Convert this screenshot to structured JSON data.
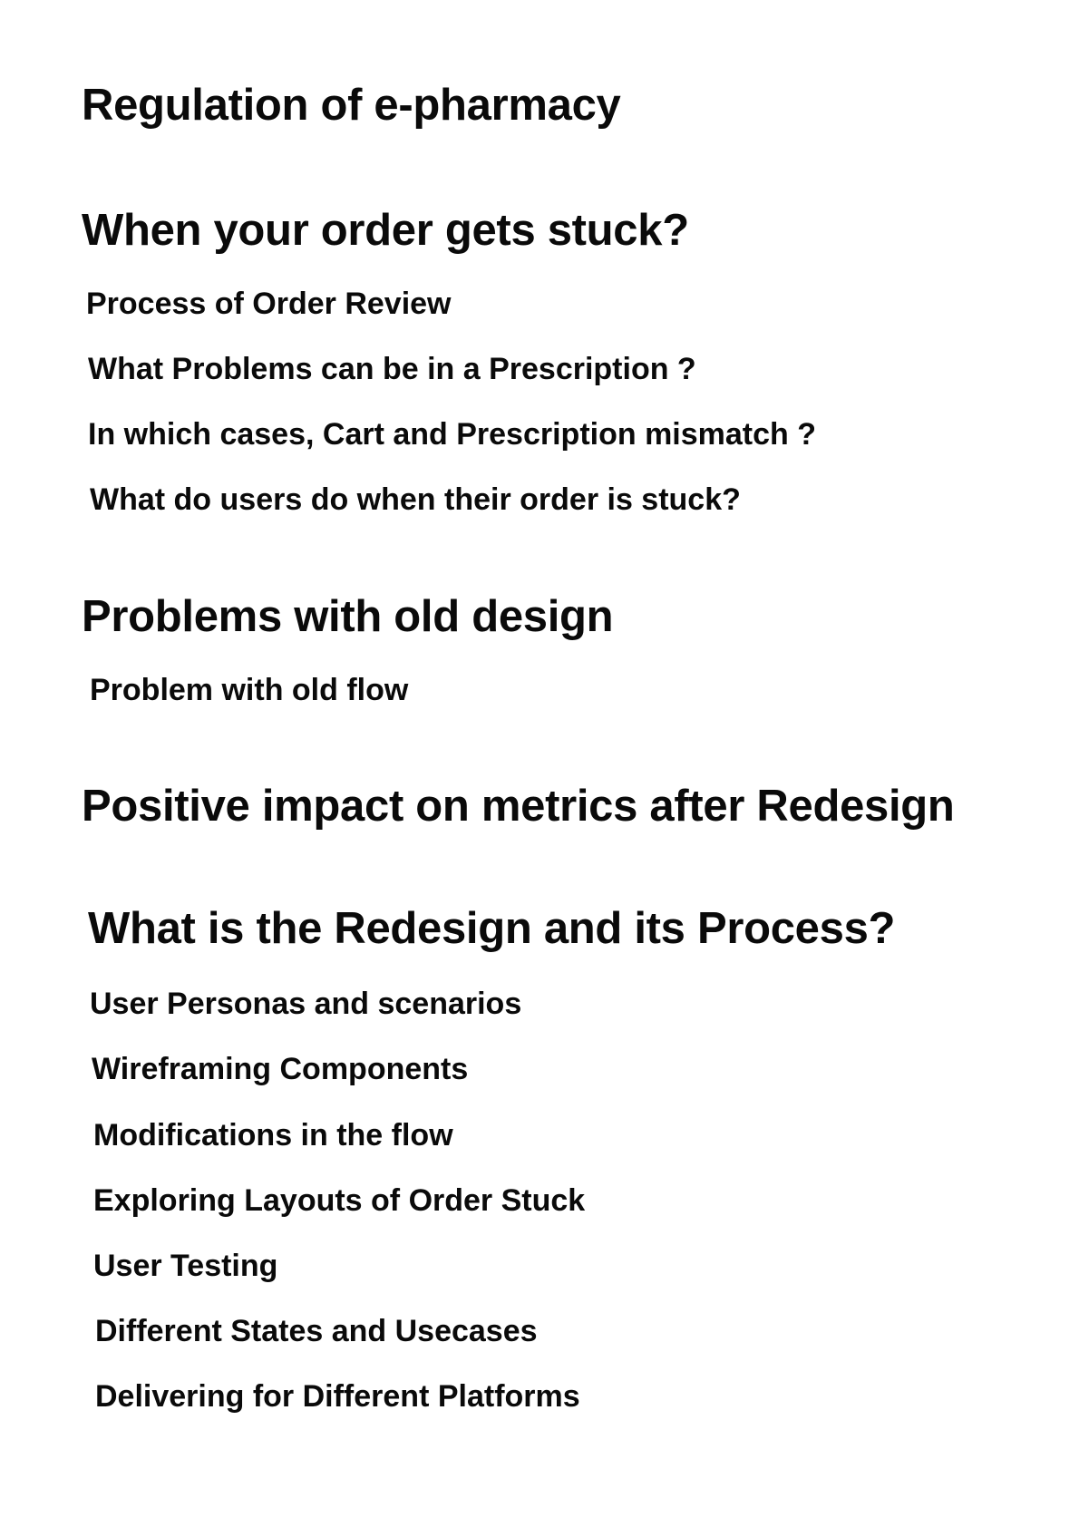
{
  "title": "Regulation of e-pharmacy",
  "sections": [
    {
      "heading": "When your order gets stuck?",
      "items": [
        "Process of Order Review",
        "What Problems can be in a Prescription ?",
        "In which cases, Cart and Prescription mismatch ?",
        "What do users do when their order is stuck?"
      ]
    },
    {
      "heading": "Problems with old design",
      "items": [
        "Problem with old flow"
      ]
    },
    {
      "heading": "Positive impact on metrics after Redesign",
      "items": []
    },
    {
      "heading": "What is the Redesign and its Process?",
      "items": [
        "User Personas and scenarios",
        "Wireframing Components",
        "Modifications in the flow",
        "Exploring Layouts of Order Stuck",
        "User Testing",
        "Different States and Usecases",
        "Delivering for Different Platforms"
      ]
    }
  ]
}
